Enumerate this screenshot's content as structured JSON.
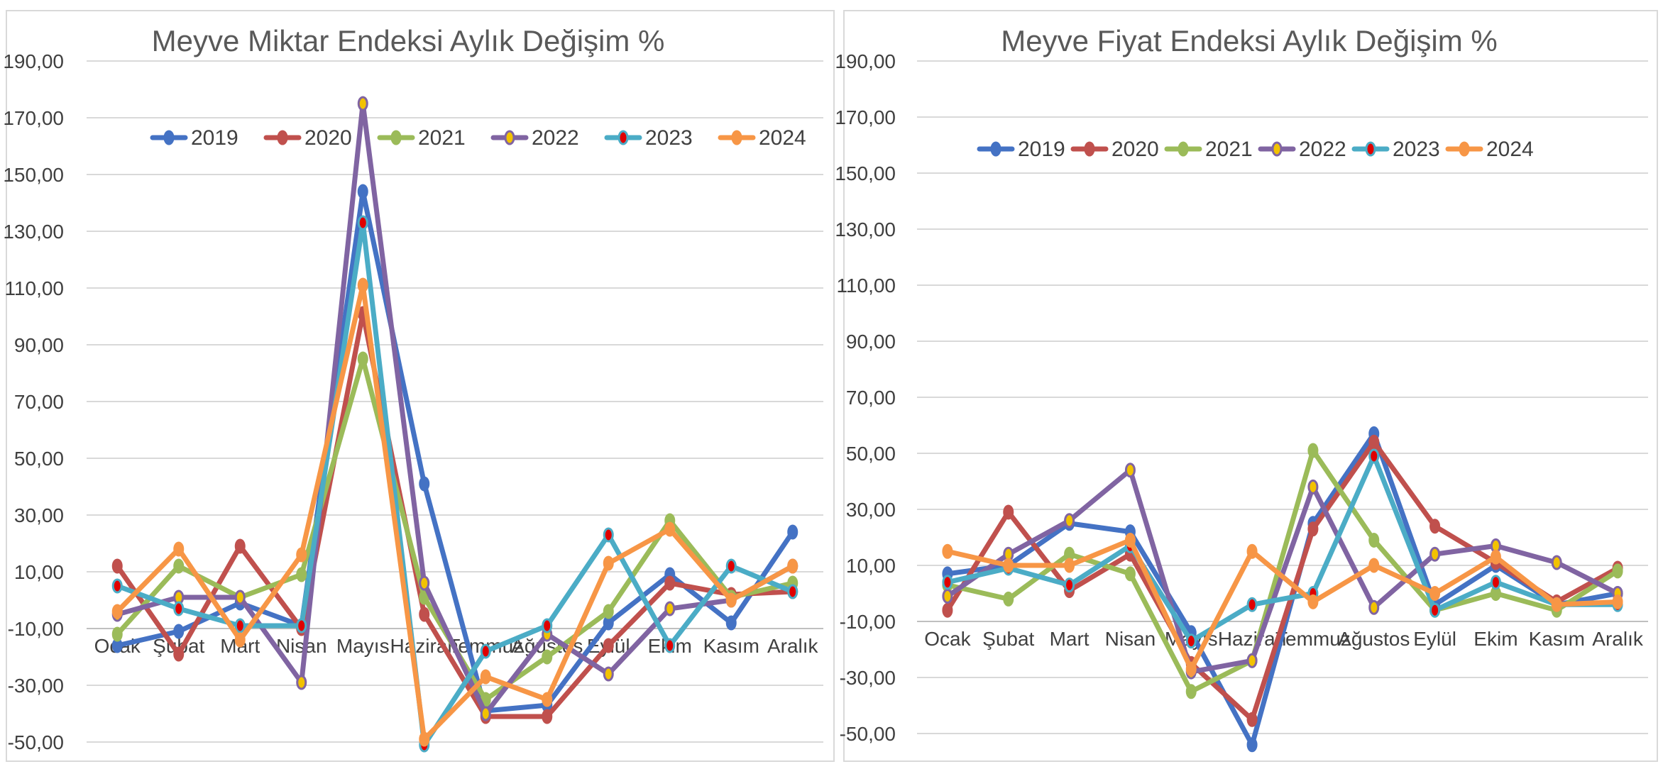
{
  "chart_data": [
    {
      "type": "line",
      "title": "Meyve Miktar Endeksi Aylık Değişim %",
      "xlabel": "",
      "ylabel": "",
      "ylim": [
        -50,
        190
      ],
      "yticks": [
        "190,00",
        "170,00",
        "150,00",
        "130,00",
        "110,00",
        "90,00",
        "70,00",
        "50,00",
        "30,00",
        "10,00",
        "-10,00",
        "-30,00",
        "-50,00"
      ],
      "categories": [
        "Ocak",
        "Şubat",
        "Mart",
        "Nisan",
        "Mayıs",
        "Haziran",
        "Temmuz",
        "Ağustos",
        "Eylül",
        "Ekim",
        "Kasım",
        "Aralık"
      ],
      "legend_position": "top",
      "series": [
        {
          "name": "2019",
          "color": "#4472c4",
          "marker_fill": "#4472c4",
          "values": [
            -16,
            -11,
            -1,
            -9,
            144,
            41,
            -39,
            -37,
            -8,
            9,
            -8,
            24
          ]
        },
        {
          "name": "2020",
          "color": "#c0504d",
          "marker_fill": "#c0504d",
          "values": [
            12,
            -19,
            19,
            -10,
            101,
            -5,
            -41,
            -41,
            -16,
            6,
            2,
            3
          ]
        },
        {
          "name": "2021",
          "color": "#9bbb59",
          "marker_fill": "#9bbb59",
          "values": [
            -12,
            12,
            1,
            9,
            85,
            1,
            -35,
            -20,
            -4,
            28,
            1,
            6
          ]
        },
        {
          "name": "2022",
          "color": "#8064a2",
          "marker_fill": "#f2c200",
          "values": [
            -5,
            1,
            1,
            -29,
            175,
            6,
            -40,
            -12,
            -26,
            -3,
            0,
            12
          ]
        },
        {
          "name": "2023",
          "color": "#4bacc6",
          "marker_fill": "#e00000",
          "values": [
            5,
            -3,
            -9,
            -9,
            133,
            -51,
            -18,
            -9,
            23,
            -16,
            12,
            3
          ]
        },
        {
          "name": "2024",
          "color": "#f79646",
          "marker_fill": "#f79646",
          "values": [
            -4,
            18,
            -14,
            16,
            111,
            -49,
            -27,
            -35,
            13,
            25,
            0,
            12
          ]
        }
      ]
    },
    {
      "type": "line",
      "title": "Meyve Fiyat Endeksi Aylık Değişim %",
      "xlabel": "",
      "ylabel": "",
      "ylim": [
        -50,
        190
      ],
      "yticks": [
        "190,00",
        "170,00",
        "150,00",
        "130,00",
        "110,00",
        "90,00",
        "70,00",
        "50,00",
        "30,00",
        "10,00",
        "-10,00",
        "-30,00",
        "-50,00"
      ],
      "categories": [
        "Ocak",
        "Şubat",
        "Mart",
        "Nisan",
        "Mayıs",
        "Haziran",
        "Temmuz",
        "Ağustos",
        "Eylül",
        "Ekim",
        "Kasım",
        "Aralık"
      ],
      "legend_position": "top",
      "series": [
        {
          "name": "2019",
          "color": "#4472c4",
          "marker_fill": "#4472c4",
          "values": [
            7,
            10,
            25,
            22,
            -14,
            -54,
            25,
            57,
            -4,
            10,
            -4,
            0
          ]
        },
        {
          "name": "2020",
          "color": "#c0504d",
          "marker_fill": "#c0504d",
          "values": [
            -6,
            29,
            1,
            14,
            -25,
            -45,
            23,
            54,
            24,
            11,
            -3,
            9
          ]
        },
        {
          "name": "2021",
          "color": "#9bbb59",
          "marker_fill": "#9bbb59",
          "values": [
            3,
            -2,
            14,
            7,
            -35,
            -24,
            51,
            19,
            -6,
            0,
            -6,
            8
          ]
        },
        {
          "name": "2022",
          "color": "#8064a2",
          "marker_fill": "#f2c200",
          "values": [
            -1,
            14,
            26,
            44,
            -28,
            -24,
            38,
            -5,
            14,
            17,
            11,
            0
          ]
        },
        {
          "name": "2023",
          "color": "#4bacc6",
          "marker_fill": "#e00000",
          "values": [
            4,
            9,
            3,
            17,
            -17,
            -4,
            0,
            49,
            -6,
            4,
            -4,
            -4
          ]
        },
        {
          "name": "2024",
          "color": "#f79646",
          "marker_fill": "#f79646",
          "values": [
            15,
            10,
            10,
            19,
            -27,
            15,
            -3,
            10,
            0,
            13,
            -4,
            -3
          ]
        }
      ]
    }
  ]
}
